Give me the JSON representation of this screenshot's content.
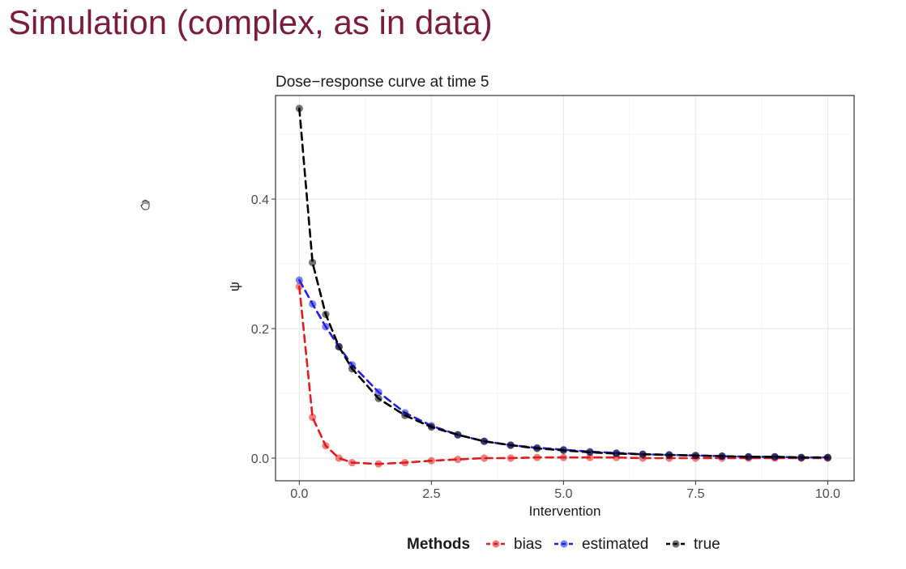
{
  "slide": {
    "title": "Simulation (complex, as in data)"
  },
  "icons": {
    "cursor": "hand-cursor-icon"
  },
  "chart_data": {
    "type": "line",
    "title": "Dose−response curve at time 5",
    "xlabel": "Intervention",
    "ylabel": "ψ",
    "xlim": [
      -0.45,
      10.5
    ],
    "ylim": [
      -0.035,
      0.56
    ],
    "x_ticks": [
      0,
      2.5,
      5,
      7.5,
      10
    ],
    "x_tick_labels": [
      "0.0",
      "2.5",
      "5.0",
      "7.5",
      "10.0"
    ],
    "y_ticks": [
      0,
      0.2,
      0.4
    ],
    "y_tick_labels": [
      "0.0",
      "0.2",
      "0.4"
    ],
    "grid": true,
    "line_style": "dashed",
    "markers": true,
    "legend": {
      "title": "Methods",
      "position": "bottom"
    },
    "x": [
      0,
      0.25,
      0.5,
      0.75,
      1,
      1.5,
      2,
      2.5,
      3,
      3.5,
      4,
      4.5,
      5,
      5.5,
      6,
      6.5,
      7,
      7.5,
      8,
      8.5,
      9,
      9.5,
      10
    ],
    "series": [
      {
        "name": "bias",
        "color": "#e41a1c",
        "values": [
          0.265,
          0.063,
          0.019,
          0.0,
          -0.007,
          -0.009,
          -0.007,
          -0.004,
          -0.002,
          0.0,
          0.0,
          0.001,
          0.001,
          0.001,
          0.001,
          0.0,
          0.0,
          0.0,
          0.0,
          0.0,
          0.0,
          0.0,
          0.0
        ]
      },
      {
        "name": "estimated",
        "color": "#1f1fe6",
        "values": [
          0.275,
          0.238,
          0.203,
          0.172,
          0.144,
          0.102,
          0.07,
          0.05,
          0.036,
          0.026,
          0.02,
          0.016,
          0.013,
          0.01,
          0.008,
          0.006,
          0.005,
          0.004,
          0.003,
          0.002,
          0.002,
          0.001,
          0.001
        ]
      },
      {
        "name": "true",
        "color": "#000000",
        "values": [
          0.54,
          0.302,
          0.222,
          0.172,
          0.138,
          0.092,
          0.066,
          0.048,
          0.036,
          0.026,
          0.02,
          0.015,
          0.012,
          0.009,
          0.007,
          0.006,
          0.005,
          0.004,
          0.003,
          0.002,
          0.002,
          0.001,
          0.001
        ]
      }
    ]
  }
}
